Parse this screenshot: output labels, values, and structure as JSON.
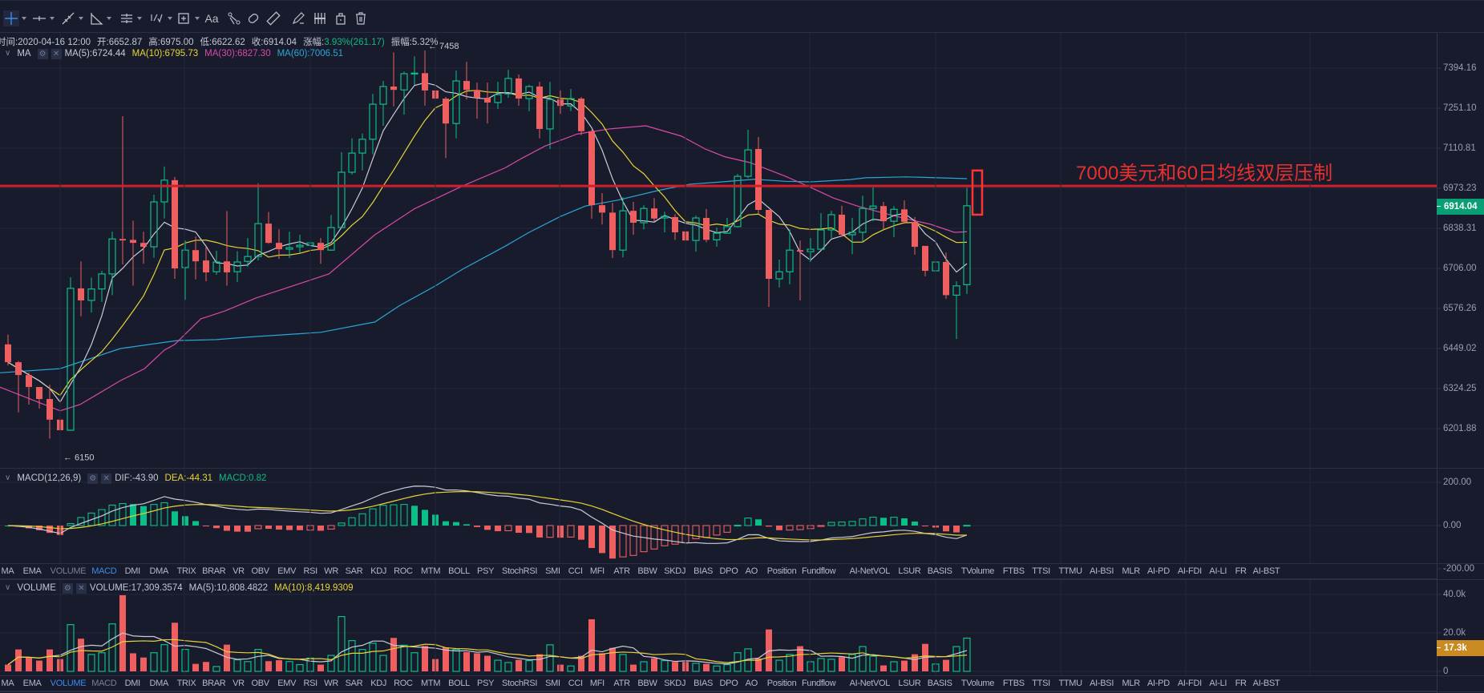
{
  "toolbar": {
    "tools": [
      {
        "icon": "crosshair-icon",
        "has_menu": true,
        "active": true
      },
      {
        "icon": "horizontal-line-icon",
        "has_menu": true
      },
      {
        "icon": "trend-line-icon",
        "has_menu": true
      },
      {
        "icon": "angle-icon",
        "has_menu": true
      },
      {
        "icon": "parallel-channel-icon",
        "has_menu": true
      },
      {
        "icon": "fibonacci-icon",
        "has_menu": true
      },
      {
        "icon": "rectangle-icon",
        "has_menu": true
      },
      {
        "icon": "text-icon",
        "label": "Aa"
      },
      {
        "icon": "pattern-icon"
      },
      {
        "icon": "magnet-icon"
      },
      {
        "icon": "ruler-icon"
      },
      {
        "icon": "brush-icon"
      },
      {
        "icon": "bars-pattern-icon"
      },
      {
        "icon": "lock-icon"
      },
      {
        "icon": "trash-icon"
      }
    ]
  },
  "info": {
    "time": "时间:2020-04-16 12:00",
    "open": "开:6652.87",
    "high": "高:6975.00",
    "low": "低:6622.62",
    "close": "收:6914.04",
    "change_label": "涨幅:",
    "change_value": "3.93%(261.17)",
    "amplitude": "振幅:5.32%"
  },
  "ma_legend": {
    "title": "MA",
    "ma5": "MA(5):6724.44",
    "ma10": "MA(10):6795.73",
    "ma30": "MA(30):6827.30",
    "ma60": "MA(60):7006.51"
  },
  "macd_legend": {
    "title": "MACD(12,26,9)",
    "dif": "DIF:-43.90",
    "dea": "DEA:-44.31",
    "macd": "MACD:0.82"
  },
  "volume_legend": {
    "title": "VOLUME",
    "volume": "VOLUME:17,309.3574",
    "ma5": "MA(5):10,808.4822",
    "ma10": "MA(10):8,419.9309"
  },
  "indicator_tabs": [
    "MA",
    "EMA",
    "VOLUME",
    "MACD",
    "DMI",
    "DMA",
    "TRIX",
    "BRAR",
    "VR",
    "OBV",
    "EMV",
    "RSI",
    "WR",
    "SAR",
    "KDJ",
    "ROC",
    "MTM",
    "BOLL",
    "PSY",
    "StochRSI",
    "SMI",
    "CCI",
    "MFI",
    "ATR",
    "BBW",
    "SKDJ",
    "BIAS",
    "DPO",
    "AO",
    "Position",
    "Fundflow",
    "AI-NetVOL",
    "LSUR",
    "BASIS",
    "TVolume",
    "FTBS",
    "TTSI",
    "TTMU",
    "AI-BSI",
    "MLR",
    "AI-PD",
    "AI-FDI",
    "AI-LI",
    "FR",
    "AI-BST"
  ],
  "indicator_tabs_macd_pane_active": "MACD",
  "indicator_tabs_volume_pane_active": "VOLUME",
  "annotation": {
    "text": "7000美元和60日均线双层压制",
    "color": "#e8302e",
    "resistance_price": 6981,
    "box": {
      "bar_index": 93,
      "price_top": 7034,
      "price_bottom": 6884
    }
  },
  "colors": {
    "background": "#181b2c",
    "up": "#0bbf88",
    "down": "#ef5f5f",
    "ma5": "#c9cbd6",
    "ma10": "#e6d435",
    "ma30": "#d84aa8",
    "ma60": "#2aa6d6",
    "accent": "#3b8beb",
    "last_price_tag": "#0a9e74",
    "volume_tag": "#c98a22"
  },
  "chart_data": {
    "type": "candlestick",
    "price_scale": "log",
    "price_ticks": [
      "7394.16",
      "7251.10",
      "7110.81",
      "6973.23",
      "6838.31",
      "6706.00",
      "6576.26",
      "6449.02",
      "6324.25",
      "6201.88"
    ],
    "last_price": "6914.04",
    "high_marker": {
      "bar_index": 40,
      "label": "← 7458"
    },
    "low_marker": {
      "bar_index": 5,
      "label": "← 6150"
    },
    "ohlc": [
      [
        6462,
        6493,
        6396,
        6406
      ],
      [
        6406,
        6410,
        6251,
        6366
      ],
      [
        6366,
        6374,
        6275,
        6329
      ],
      [
        6329,
        6329,
        6263,
        6292
      ],
      [
        6292,
        6336,
        6172,
        6229
      ],
      [
        6229,
        6229,
        6150,
        6197
      ],
      [
        6197,
        6677,
        6195,
        6641
      ],
      [
        6641,
        6729,
        6551,
        6602
      ],
      [
        6602,
        6676,
        6563,
        6639
      ],
      [
        6639,
        6698,
        6597,
        6688
      ],
      [
        6688,
        6827,
        6619,
        6803
      ],
      [
        6803,
        7223,
        6719,
        6798
      ],
      [
        6800,
        6864,
        6650,
        6790
      ],
      [
        6790,
        6827,
        6721,
        6777
      ],
      [
        6777,
        6951,
        6741,
        6927
      ],
      [
        6927,
        7048,
        6871,
        7001
      ],
      [
        7001,
        7012,
        6672,
        6706
      ],
      [
        6709,
        6798,
        6604,
        6766
      ],
      [
        6766,
        6811,
        6670,
        6729
      ],
      [
        6732,
        6777,
        6664,
        6693
      ],
      [
        6695,
        6764,
        6685,
        6727
      ],
      [
        6729,
        6896,
        6650,
        6693
      ],
      [
        6695,
        6762,
        6661,
        6727
      ],
      [
        6729,
        6806,
        6711,
        6745
      ],
      [
        6745,
        6990,
        6732,
        6854
      ],
      [
        6854,
        6893,
        6787,
        6790
      ],
      [
        6790,
        6835,
        6737,
        6769
      ],
      [
        6769,
        6827,
        6740,
        6774
      ],
      [
        6777,
        6817,
        6756,
        6782
      ],
      [
        6782,
        6835,
        6675,
        6790
      ],
      [
        6790,
        6806,
        6721,
        6766
      ],
      [
        6766,
        6883,
        6764,
        6841
      ],
      [
        6841,
        7097,
        6838,
        7028
      ],
      [
        7028,
        7145,
        7020,
        7094
      ],
      [
        7094,
        7162,
        7034,
        7142
      ],
      [
        7142,
        7302,
        7090,
        7265
      ],
      [
        7265,
        7348,
        7189,
        7328
      ],
      [
        7328,
        7451,
        7257,
        7316
      ],
      [
        7316,
        7382,
        7228,
        7374
      ],
      [
        7374,
        7437,
        7334,
        7376
      ],
      [
        7376,
        7458,
        7260,
        7314
      ],
      [
        7314,
        7388,
        7271,
        7285
      ],
      [
        7285,
        7291,
        7077,
        7197
      ],
      [
        7197,
        7385,
        7145,
        7348
      ],
      [
        7348,
        7417,
        7282,
        7316
      ],
      [
        7316,
        7342,
        7214,
        7288
      ],
      [
        7288,
        7342,
        7197,
        7271
      ],
      [
        7271,
        7345,
        7248,
        7299
      ],
      [
        7302,
        7388,
        7288,
        7357
      ],
      [
        7357,
        7371,
        7260,
        7285
      ],
      [
        7285,
        7334,
        7240,
        7328
      ],
      [
        7328,
        7345,
        7145,
        7178
      ],
      [
        7178,
        7345,
        7108,
        7282
      ],
      [
        7282,
        7314,
        7231,
        7259
      ],
      [
        7259,
        7319,
        7240,
        7285
      ],
      [
        7285,
        7291,
        7156,
        7170
      ],
      [
        7170,
        7175,
        6870,
        6916
      ],
      [
        6916,
        6957,
        6851,
        6891
      ],
      [
        6891,
        6924,
        6740,
        6766
      ],
      [
        6766,
        6943,
        6742,
        6897
      ],
      [
        6897,
        6927,
        6817,
        6857
      ],
      [
        6857,
        6916,
        6835,
        6905
      ],
      [
        6905,
        6940,
        6862,
        6871
      ],
      [
        6873,
        6894,
        6825,
        6878
      ],
      [
        6876,
        6886,
        6800,
        6825
      ],
      [
        6828,
        6857,
        6774,
        6798
      ],
      [
        6798,
        6881,
        6761,
        6873
      ],
      [
        6873,
        6903,
        6792,
        6800
      ],
      [
        6800,
        6841,
        6777,
        6822
      ],
      [
        6822,
        6873,
        6822,
        6844
      ],
      [
        6844,
        7022,
        6841,
        7014
      ],
      [
        7014,
        7175,
        7008,
        7105
      ],
      [
        7108,
        7150,
        6886,
        6900
      ],
      [
        6900,
        6900,
        6581,
        6672
      ],
      [
        6672,
        6735,
        6644,
        6695
      ],
      [
        6695,
        6835,
        6654,
        6766
      ],
      [
        6766,
        6798,
        6602,
        6761
      ],
      [
        6761,
        6806,
        6727,
        6769
      ],
      [
        6769,
        6889,
        6766,
        6833
      ],
      [
        6833,
        6897,
        6806,
        6884
      ],
      [
        6884,
        6914,
        6811,
        6817
      ],
      [
        6817,
        6873,
        6753,
        6825
      ],
      [
        6825,
        6948,
        6795,
        6905
      ],
      [
        6905,
        6976,
        6862,
        6913
      ],
      [
        6913,
        6927,
        6835,
        6862
      ],
      [
        6862,
        6913,
        6809,
        6902
      ],
      [
        6902,
        6932,
        6854,
        6860
      ],
      [
        6860,
        6876,
        6751,
        6777
      ],
      [
        6780,
        6780,
        6680,
        6698
      ],
      [
        6698,
        6771,
        6688,
        6727
      ],
      [
        6727,
        6758,
        6607,
        6619
      ],
      [
        6619,
        6664,
        6479,
        6649
      ],
      [
        6652.87,
        6975,
        6622.62,
        6914.04
      ]
    ],
    "ma30": [
      [
        -0.8,
        6329
      ],
      [
        5,
        6256
      ],
      [
        6.9,
        6275
      ],
      [
        10.8,
        6349
      ],
      [
        13.1,
        6386
      ],
      [
        15,
        6444
      ],
      [
        16,
        6462
      ],
      [
        18.5,
        6543
      ],
      [
        20.8,
        6568
      ],
      [
        23.8,
        6610
      ],
      [
        30.8,
        6688
      ],
      [
        35.2,
        6817
      ],
      [
        39,
        6904
      ],
      [
        43.6,
        6981
      ],
      [
        47.7,
        7043
      ],
      [
        49.2,
        7074
      ],
      [
        51.5,
        7118
      ],
      [
        54.6,
        7160
      ],
      [
        57.7,
        7178
      ],
      [
        61.2,
        7189
      ],
      [
        64.6,
        7153
      ],
      [
        66.9,
        7108
      ],
      [
        68.8,
        7081
      ],
      [
        71.2,
        7061
      ],
      [
        74.6,
        7014
      ],
      [
        76.9,
        6978
      ],
      [
        79.2,
        6940
      ],
      [
        81.5,
        6913
      ],
      [
        83.8,
        6891
      ],
      [
        86.2,
        6870
      ],
      [
        88.5,
        6852
      ],
      [
        90.8,
        6825
      ],
      [
        92,
        6827
      ]
    ],
    "ma60": [
      [
        -0.8,
        6373
      ],
      [
        5,
        6386
      ],
      [
        10.8,
        6449
      ],
      [
        16.2,
        6474
      ],
      [
        20,
        6477
      ],
      [
        23,
        6485
      ],
      [
        30,
        6500
      ],
      [
        35.2,
        6533
      ],
      [
        37.5,
        6584
      ],
      [
        41,
        6649
      ],
      [
        43.6,
        6703
      ],
      [
        47.7,
        6779
      ],
      [
        50,
        6825
      ],
      [
        53,
        6878
      ],
      [
        55.4,
        6913
      ],
      [
        58.5,
        6933
      ],
      [
        62.3,
        6965
      ],
      [
        65.4,
        6987
      ],
      [
        68.5,
        6995
      ],
      [
        71.6,
        7004
      ],
      [
        74.6,
        6997
      ],
      [
        77,
        6995
      ],
      [
        80.8,
        7003
      ],
      [
        82.3,
        7009
      ],
      [
        86.2,
        7012
      ],
      [
        89.2,
        7009
      ],
      [
        92,
        7006
      ]
    ],
    "macd_ticks": [
      "200.00",
      "0.00",
      "-200.00"
    ],
    "volume_ticks": [
      "40.0k",
      "20.0k",
      "0"
    ],
    "last_volume_tag": "17.3k",
    "volume": [
      3500,
      11400,
      7200,
      5600,
      11400,
      6400,
      24300,
      17000,
      8800,
      9700,
      24700,
      39600,
      9400,
      7200,
      9700,
      13900,
      25300,
      11400,
      3900,
      4900,
      2500,
      13900,
      6000,
      5100,
      11400,
      5300,
      5800,
      5100,
      3500,
      6900,
      3500,
      8300,
      28500,
      16000,
      11400,
      14600,
      8300,
      17400,
      13600,
      9700,
      13200,
      6400,
      12500,
      11400,
      10000,
      9400,
      8100,
      5800,
      4600,
      6000,
      5600,
      8900,
      13800,
      3500,
      2800,
      8100,
      27100,
      9400,
      12200,
      8800,
      3500,
      5000,
      6900,
      5600,
      4900,
      4900,
      4200,
      3900,
      2800,
      3500,
      9700,
      11700,
      6700,
      21800,
      5800,
      8800,
      13100,
      5000,
      6700,
      6300,
      7400,
      8800,
      12900,
      7900,
      3100,
      5000,
      5600,
      8900,
      14300,
      3800,
      6000,
      12900,
      17300
    ]
  }
}
